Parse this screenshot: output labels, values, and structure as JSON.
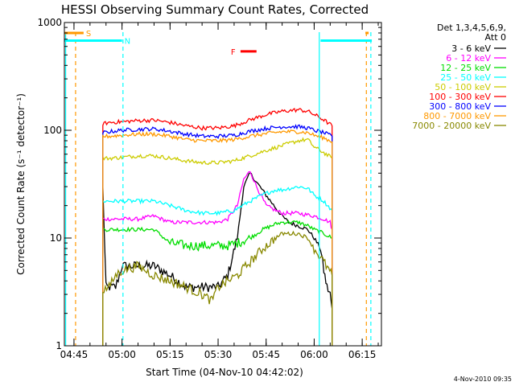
{
  "chart_data": {
    "type": "line",
    "title": "HESSI Observing Summary Count Rates, Corrected",
    "xlabel": "Start Time (04-Nov-10 04:42:02)",
    "ylabel": "Corrected Count Rate (s⁻¹ detector⁻¹)",
    "y_scale": "log",
    "ylim": [
      1,
      1000
    ],
    "xlim": [
      "04:42",
      "06:21"
    ],
    "x_ticks": [
      "04:45",
      "05:00",
      "05:15",
      "05:30",
      "05:45",
      "06:00",
      "06:15"
    ],
    "y_ticks": [
      "1",
      "10",
      "100",
      "1000"
    ],
    "grid": false,
    "legend_position": "right",
    "legend_header": [
      "Det 1,3,4,5,6,9,",
      "Att 0"
    ],
    "series": [
      {
        "name": "3 - 6 keV",
        "color": "#000000",
        "x": [
          "04:54",
          "04:55",
          "04:58",
          "05:00",
          "05:05",
          "05:10",
          "05:15",
          "05:20",
          "05:25",
          "05:30",
          "05:33",
          "05:36",
          "05:38",
          "05:40",
          "05:42",
          "05:45",
          "05:48",
          "05:50",
          "05:52",
          "05:55",
          "05:58",
          "06:00",
          "06:02",
          "06:03",
          "06:04",
          "06:05",
          "06:05.6"
        ],
        "y": [
          30,
          3.5,
          3.5,
          5.5,
          5.5,
          5.5,
          4.5,
          3.5,
          3.5,
          3.5,
          4.5,
          10,
          30,
          40,
          33,
          25,
          19,
          16,
          14,
          13,
          12,
          10,
          8,
          5,
          3.5,
          3,
          2.2
        ]
      },
      {
        "name": "6 - 12 keV",
        "color": "#ff00ff",
        "x": [
          "04:54",
          "04:56",
          "05:00",
          "05:05",
          "05:10",
          "05:15",
          "05:20",
          "05:25",
          "05:30",
          "05:33",
          "05:36",
          "05:38",
          "05:40",
          "05:42",
          "05:45",
          "05:48",
          "05:50",
          "05:55",
          "06:00",
          "06:03",
          "06:05",
          "06:05.6"
        ],
        "y": [
          15,
          15,
          15,
          15,
          16,
          14,
          14,
          14,
          14,
          15,
          20,
          35,
          42,
          30,
          20,
          18,
          17,
          17,
          16,
          15,
          14,
          12
        ]
      },
      {
        "name": "12 - 25 keV",
        "color": "#00dd00",
        "x": [
          "04:54",
          "04:56",
          "05:00",
          "05:05",
          "05:10",
          "05:15",
          "05:20",
          "05:25",
          "05:30",
          "05:33",
          "05:36",
          "05:40",
          "05:44",
          "05:48",
          "05:50",
          "05:55",
          "05:58",
          "06:00",
          "06:03",
          "06:05.6"
        ],
        "y": [
          12,
          12,
          12,
          12,
          12,
          9,
          8.5,
          8.5,
          8.5,
          8.5,
          9,
          10,
          12,
          13.5,
          14,
          14,
          13,
          12,
          11,
          10
        ]
      },
      {
        "name": "25 - 50 keV",
        "color": "#00ffff",
        "x": [
          "04:54",
          "04:56",
          "05:00",
          "05:05",
          "05:10",
          "05:15",
          "05:20",
          "05:25",
          "05:30",
          "05:35",
          "05:40",
          "05:45",
          "05:48",
          "05:50",
          "05:55",
          "05:58",
          "06:00",
          "06:03",
          "06:05.6"
        ],
        "y": [
          22,
          22,
          22,
          22,
          22,
          20,
          18,
          17,
          17,
          18,
          22,
          26,
          28,
          28,
          30,
          29,
          25,
          22,
          18
        ]
      },
      {
        "name": "50 - 100 keV",
        "color": "#cccc00",
        "x": [
          "04:54",
          "04:56",
          "05:00",
          "05:05",
          "05:10",
          "05:15",
          "05:20",
          "05:25",
          "05:30",
          "05:35",
          "05:40",
          "05:45",
          "05:50",
          "05:55",
          "05:58",
          "06:00",
          "06:03",
          "06:05.6"
        ],
        "y": [
          55,
          55,
          56,
          58,
          58,
          55,
          52,
          50,
          50,
          52,
          58,
          65,
          72,
          80,
          82,
          70,
          62,
          55
        ]
      },
      {
        "name": "100 - 300 keV",
        "color": "#ff0000",
        "x": [
          "04:54",
          "04:56",
          "05:00",
          "05:05",
          "05:10",
          "05:15",
          "05:20",
          "05:25",
          "05:30",
          "05:35",
          "05:40",
          "05:45",
          "05:50",
          "05:55",
          "05:58",
          "06:00",
          "06:03",
          "06:05.6"
        ],
        "y": [
          115,
          118,
          120,
          123,
          124,
          118,
          110,
          105,
          105,
          110,
          125,
          140,
          150,
          155,
          150,
          140,
          125,
          110
        ]
      },
      {
        "name": "300 - 800 keV",
        "color": "#0000ff",
        "x": [
          "04:54",
          "04:56",
          "05:00",
          "05:05",
          "05:10",
          "05:15",
          "05:20",
          "05:25",
          "05:30",
          "05:35",
          "05:40",
          "05:45",
          "05:50",
          "05:55",
          "05:58",
          "06:00",
          "06:03",
          "06:05.6"
        ],
        "y": [
          95,
          97,
          100,
          102,
          103,
          98,
          92,
          88,
          88,
          90,
          98,
          104,
          108,
          108,
          105,
          100,
          95,
          88
        ]
      },
      {
        "name": "800 - 7000 keV",
        "color": "#ff9900",
        "x": [
          "04:54",
          "04:56",
          "05:00",
          "05:05",
          "05:10",
          "05:15",
          "05:20",
          "05:25",
          "05:30",
          "05:35",
          "05:40",
          "05:45",
          "05:50",
          "05:55",
          "05:58",
          "06:00",
          "06:03",
          "06:05.6"
        ],
        "y": [
          88,
          88,
          90,
          92,
          92,
          88,
          82,
          80,
          80,
          82,
          88,
          93,
          97,
          97,
          95,
          90,
          85,
          78
        ]
      },
      {
        "name": "7000 - 20000 keV",
        "color": "#888800",
        "x": [
          "04:54",
          "04:56",
          "04:58",
          "05:00",
          "05:05",
          "05:10",
          "05:15",
          "05:20",
          "05:25",
          "05:28",
          "05:30",
          "05:33",
          "05:36",
          "05:40",
          "05:44",
          "05:48",
          "05:50",
          "05:55",
          "05:58",
          "06:00",
          "06:03",
          "06:05.6"
        ],
        "y": [
          3.3,
          3.5,
          4.5,
          5,
          5.5,
          4.5,
          4,
          3.5,
          3,
          2.6,
          3.5,
          4,
          4.5,
          6,
          8,
          10,
          11,
          11,
          10,
          8,
          6,
          4.5
        ]
      }
    ],
    "annotations": [
      {
        "label": "S",
        "color": "#ff9900",
        "x_start": "04:42",
        "x_end": "04:48",
        "y": 800
      },
      {
        "label": "N",
        "color": "#00ffff",
        "x_start": "04:42",
        "x_end": "05:00",
        "y": 680
      },
      {
        "label": "F",
        "color": "#ff0000",
        "x_start": "05:37",
        "x_end": "05:42",
        "y": 540
      },
      {
        "label": "",
        "color": "#ff9900",
        "x_start": "06:16",
        "x_end": "06:17",
        "y": 800
      },
      {
        "label": "",
        "color": "#00ffff",
        "x_start": "06:02",
        "x_end": "06:18",
        "y": 680
      }
    ],
    "vertical_lines": [
      {
        "x": "04:45.5",
        "color": "#ff9900",
        "style": "dashed"
      },
      {
        "x": "05:00.3",
        "color": "#00ffff",
        "style": "dashed"
      },
      {
        "x": "06:16.3",
        "color": "#ff9900",
        "style": "dashed"
      },
      {
        "x": "06:17.7",
        "color": "#00ffff",
        "style": "dashed"
      },
      {
        "x": "06:01.6",
        "color": "#00ffff",
        "style": "solid"
      },
      {
        "x": "04:42.4",
        "color": "#00ffff",
        "style": "solid"
      }
    ],
    "timestamp": "4-Nov-2010 09:35"
  }
}
